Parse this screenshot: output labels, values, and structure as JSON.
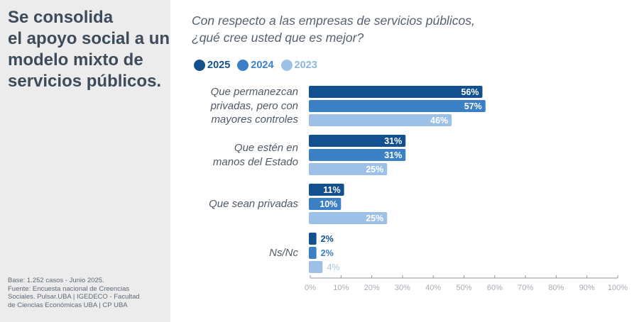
{
  "headline": [
    "Se consolida",
    "el apoyo social a un",
    "modelo mixto de",
    "servicios públicos."
  ],
  "source_note": [
    "Base: 1.252 casos - Junio 2025.",
    "Fuente: Encuesta nacional de Creencias",
    "Sociales. Pulsar.UBA | IGEDECO - Facultad",
    "de Ciencias Económicas UBA | CP UBA"
  ],
  "colors": {
    "panel_bg": "#ececec",
    "series_2025": "#12508f",
    "series_2024": "#3b80c4",
    "series_2023": "#9dc1e6",
    "axis": "#8f979f",
    "tick_label": "#a7adb3"
  },
  "chart_data": {
    "type": "bar",
    "orientation": "horizontal",
    "title": "Con respecto a las empresas de servicios públicos, ¿qué cree usted que es mejor?",
    "title_lines": [
      "Con respecto a las empresas de servicios públicos,",
      "¿qué cree usted que es mejor?"
    ],
    "categories": [
      [
        "Que permanezcan",
        "privadas, pero con",
        "mayores controles"
      ],
      [
        "Que estén en",
        "manos del Estado"
      ],
      [
        "Que sean privadas"
      ],
      [
        "Ns/Nc"
      ]
    ],
    "series": [
      {
        "name": "2025",
        "values": [
          56,
          31,
          11,
          2
        ],
        "labels": [
          "56%",
          "31%",
          "11%",
          "2%"
        ]
      },
      {
        "name": "2024",
        "values": [
          57,
          31,
          10,
          2
        ],
        "labels": [
          "57%",
          "31%",
          "10%",
          "2%"
        ]
      },
      {
        "name": "2023",
        "values": [
          46,
          25,
          25,
          4
        ],
        "labels": [
          "46%",
          "25%",
          "25%",
          "4%"
        ]
      }
    ],
    "xlim": [
      0,
      100
    ],
    "xticks": [
      0,
      10,
      20,
      30,
      40,
      50,
      60,
      70,
      80,
      90,
      100
    ],
    "xtick_labels": [
      "0%",
      "10%",
      "20%",
      "30%",
      "40%",
      "50%",
      "60%",
      "70%",
      "80%",
      "90%",
      "100%"
    ],
    "xlabel": "",
    "ylabel": "",
    "legend_position": "top-left",
    "grid": false
  }
}
